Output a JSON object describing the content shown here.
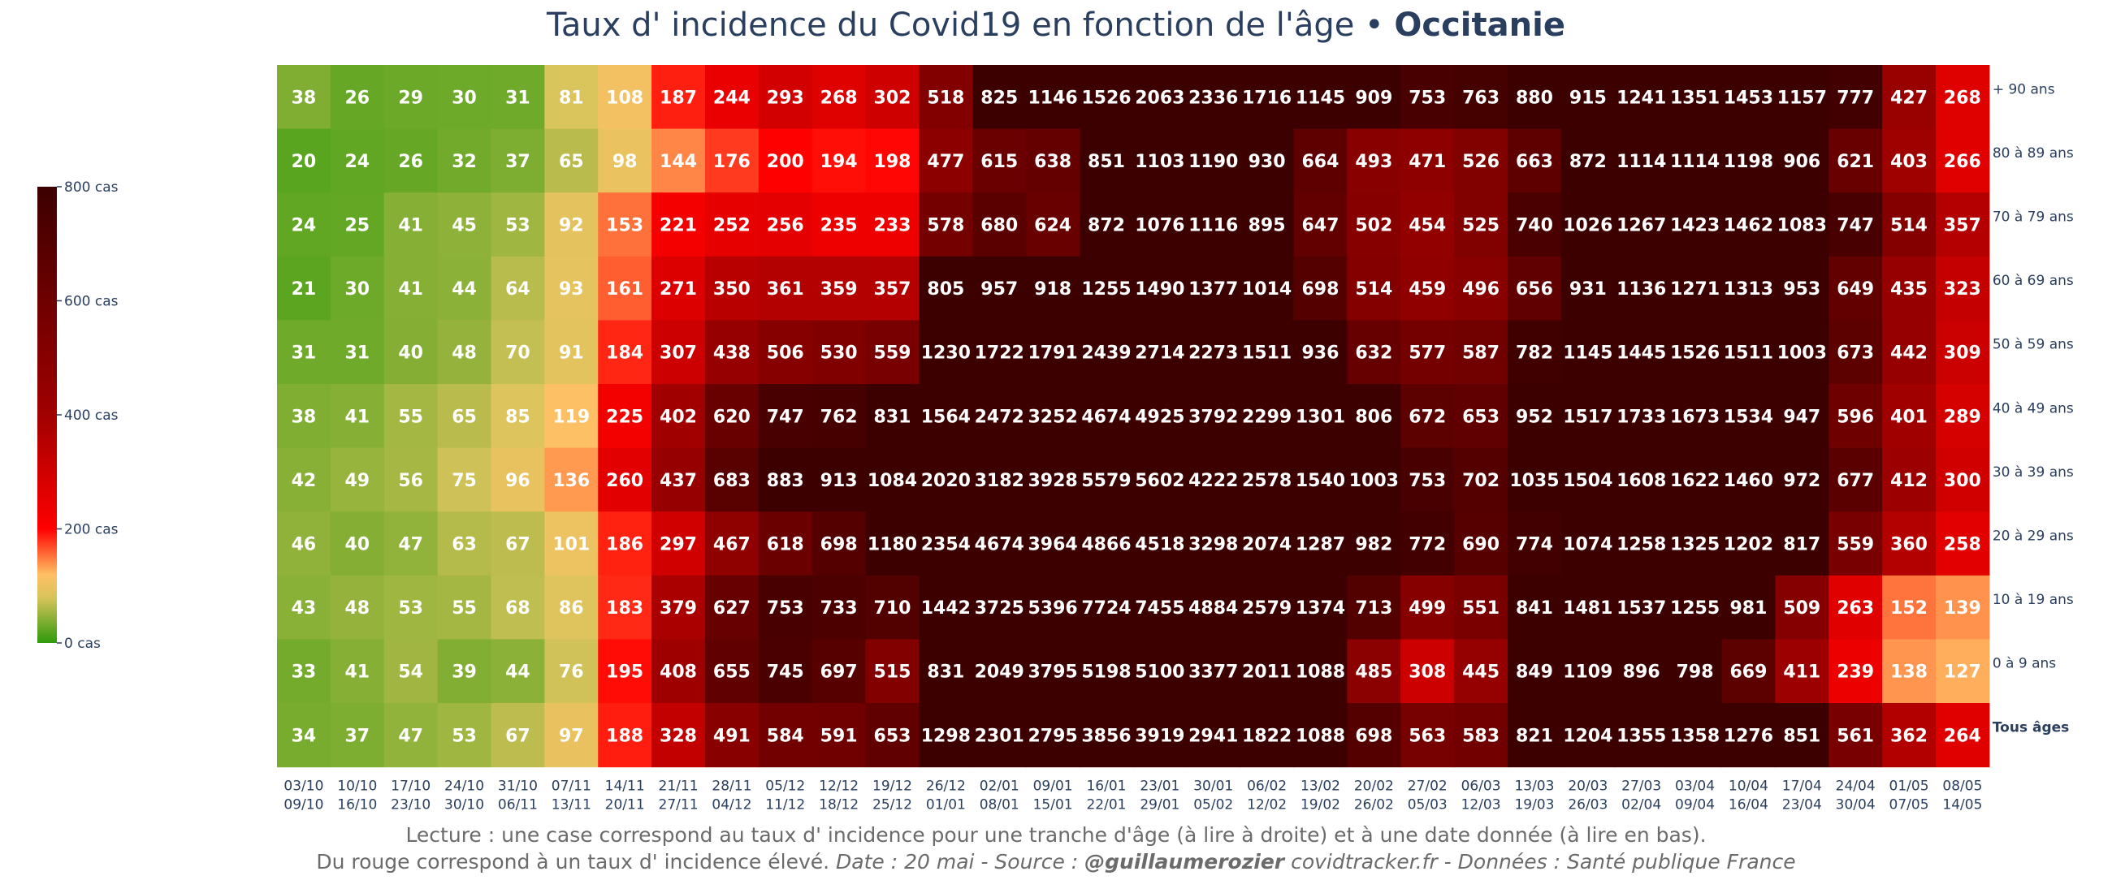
{
  "title": {
    "main": "Taux d' incidence du Covid19 en fonction de l'âge • ",
    "region": "Occitanie"
  },
  "footer": {
    "line1": "Lecture : une case correspond au taux d' incidence pour une tranche d'âge (à lire à droite) et à une date donnée (à lire en bas).",
    "line2_a": "Du rouge correspond à un taux d' incidence élevé.  ",
    "line2_b": "Date : 20 mai - Source : ",
    "line2_c": "@guillaumerozier",
    "line2_d": " covidtracker.fr - Données : Santé publique France"
  },
  "colors": {
    "text_dark": "#2a3f5f",
    "cell_text": "#ffffff"
  },
  "chart_data": {
    "type": "heatmap",
    "colorscale": [
      [
        0,
        "#2e9a0c"
      ],
      [
        0.1,
        "#d9c45c"
      ],
      [
        0.15,
        "#ffc064"
      ],
      [
        0.25,
        "#ff0000"
      ],
      [
        0.5,
        "#a00000"
      ],
      [
        1,
        "#3c0000"
      ]
    ],
    "zmin": 0,
    "zmax": 800,
    "colorbar": {
      "ticks": [
        0,
        200,
        400,
        600,
        800
      ],
      "tick_labels": [
        "0 cas",
        "200 cas",
        "400 cas",
        "600 cas",
        "800 cas"
      ]
    },
    "x": [
      [
        "03/10",
        "09/10"
      ],
      [
        "10/10",
        "16/10"
      ],
      [
        "17/10",
        "23/10"
      ],
      [
        "24/10",
        "30/10"
      ],
      [
        "31/10",
        "06/11"
      ],
      [
        "07/11",
        "13/11"
      ],
      [
        "14/11",
        "20/11"
      ],
      [
        "21/11",
        "27/11"
      ],
      [
        "28/11",
        "04/12"
      ],
      [
        "05/12",
        "11/12"
      ],
      [
        "12/12",
        "18/12"
      ],
      [
        "19/12",
        "25/12"
      ],
      [
        "26/12",
        "01/01"
      ],
      [
        "02/01",
        "08/01"
      ],
      [
        "09/01",
        "15/01"
      ],
      [
        "16/01",
        "22/01"
      ],
      [
        "23/01",
        "29/01"
      ],
      [
        "30/01",
        "05/02"
      ],
      [
        "06/02",
        "12/02"
      ],
      [
        "13/02",
        "19/02"
      ],
      [
        "20/02",
        "26/02"
      ],
      [
        "27/02",
        "05/03"
      ],
      [
        "06/03",
        "12/03"
      ],
      [
        "13/03",
        "19/03"
      ],
      [
        "20/03",
        "26/03"
      ],
      [
        "27/03",
        "02/04"
      ],
      [
        "03/04",
        "09/04"
      ],
      [
        "10/04",
        "16/04"
      ],
      [
        "17/04",
        "23/04"
      ],
      [
        "24/04",
        "30/04"
      ],
      [
        "01/05",
        "07/05"
      ],
      [
        "08/05",
        "14/05"
      ]
    ],
    "y": [
      "+ 90 ans",
      "80 à 89 ans",
      "70 à 79 ans",
      "60 à 69 ans",
      "50 à 59 ans",
      "40 à 49 ans",
      "30 à 39 ans",
      "20 à 29 ans",
      "10 à 19 ans",
      "0 à 9 ans",
      "Tous âges"
    ],
    "z": [
      [
        38,
        26,
        29,
        30,
        31,
        81,
        108,
        187,
        244,
        293,
        268,
        302,
        518,
        825,
        1146,
        1526,
        2063,
        2336,
        1716,
        1145,
        909,
        753,
        763,
        880,
        915,
        1241,
        1351,
        1453,
        1157,
        777,
        427,
        268
      ],
      [
        20,
        24,
        26,
        32,
        37,
        65,
        98,
        144,
        176,
        200,
        194,
        198,
        477,
        615,
        638,
        851,
        1103,
        1190,
        930,
        664,
        493,
        471,
        526,
        663,
        872,
        1114,
        1114,
        1198,
        906,
        621,
        403,
        266
      ],
      [
        24,
        25,
        41,
        45,
        53,
        92,
        153,
        221,
        252,
        256,
        235,
        233,
        578,
        680,
        624,
        872,
        1076,
        1116,
        895,
        647,
        502,
        454,
        525,
        740,
        1026,
        1267,
        1423,
        1462,
        1083,
        747,
        514,
        357
      ],
      [
        21,
        30,
        41,
        44,
        64,
        93,
        161,
        271,
        350,
        361,
        359,
        357,
        805,
        957,
        918,
        1255,
        1490,
        1377,
        1014,
        698,
        514,
        459,
        496,
        656,
        931,
        1136,
        1271,
        1313,
        953,
        649,
        435,
        323
      ],
      [
        31,
        31,
        40,
        48,
        70,
        91,
        184,
        307,
        438,
        506,
        530,
        559,
        1230,
        1722,
        1791,
        2439,
        2714,
        2273,
        1511,
        936,
        632,
        577,
        587,
        782,
        1145,
        1445,
        1526,
        1511,
        1003,
        673,
        442,
        309
      ],
      [
        38,
        41,
        55,
        65,
        85,
        119,
        225,
        402,
        620,
        747,
        762,
        831,
        1564,
        2472,
        3252,
        4674,
        4925,
        3792,
        2299,
        1301,
        806,
        672,
        653,
        952,
        1517,
        1733,
        1673,
        1534,
        947,
        596,
        401,
        289
      ],
      [
        42,
        49,
        56,
        75,
        96,
        136,
        260,
        437,
        683,
        883,
        913,
        1084,
        2020,
        3182,
        3928,
        5579,
        5602,
        4222,
        2578,
        1540,
        1003,
        753,
        702,
        1035,
        1504,
        1608,
        1622,
        1460,
        972,
        677,
        412,
        300
      ],
      [
        46,
        40,
        47,
        63,
        67,
        101,
        186,
        297,
        467,
        618,
        698,
        1180,
        2354,
        4674,
        3964,
        4866,
        4518,
        3298,
        2074,
        1287,
        982,
        772,
        690,
        774,
        1074,
        1258,
        1325,
        1202,
        817,
        559,
        360,
        258
      ],
      [
        43,
        48,
        53,
        55,
        68,
        86,
        183,
        379,
        627,
        753,
        733,
        710,
        1442,
        3725,
        5396,
        7724,
        7455,
        4884,
        2579,
        1374,
        713,
        499,
        551,
        841,
        1481,
        1537,
        1255,
        981,
        509,
        263,
        152,
        139
      ],
      [
        33,
        41,
        54,
        39,
        44,
        76,
        195,
        408,
        655,
        745,
        697,
        515,
        831,
        2049,
        3795,
        5198,
        5100,
        3377,
        2011,
        1088,
        485,
        308,
        445,
        849,
        1109,
        896,
        798,
        669,
        411,
        239,
        138,
        127
      ],
      [
        34,
        37,
        47,
        53,
        67,
        97,
        188,
        328,
        491,
        584,
        591,
        653,
        1298,
        2301,
        2795,
        3856,
        3919,
        2941,
        1822,
        1088,
        698,
        563,
        583,
        821,
        1204,
        1355,
        1358,
        1276,
        851,
        561,
        362,
        264
      ]
    ]
  }
}
